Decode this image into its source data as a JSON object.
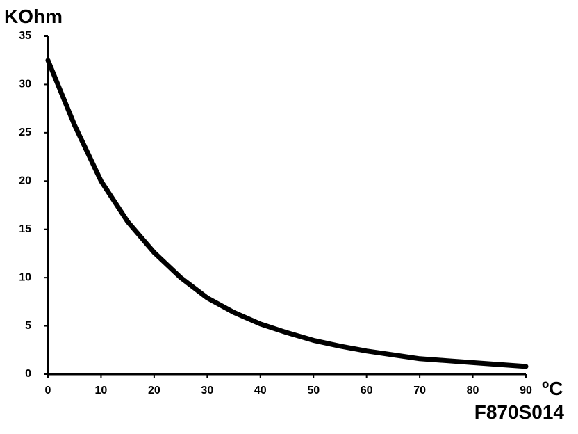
{
  "chart_data": {
    "type": "line",
    "y_label": "KOhm",
    "x_label": "ºC",
    "code": "F870S014",
    "x": [
      0,
      5,
      10,
      15,
      20,
      25,
      30,
      35,
      40,
      45,
      50,
      55,
      60,
      65,
      70,
      75,
      80,
      85,
      90
    ],
    "values": [
      32.5,
      25.8,
      20,
      15.8,
      12.6,
      10,
      7.9,
      6.4,
      5.2,
      4.3,
      3.5,
      2.9,
      2.4,
      2,
      1.6,
      1.4,
      1.2,
      1,
      0.8
    ],
    "color": "#000000",
    "xlim": [
      0,
      90
    ],
    "xticks": [
      0,
      10,
      20,
      30,
      40,
      50,
      60,
      70,
      80,
      90
    ],
    "ylim": [
      0,
      35
    ],
    "yticks": [
      0,
      5,
      10,
      15,
      20,
      25,
      30,
      35
    ],
    "grid": false
  }
}
